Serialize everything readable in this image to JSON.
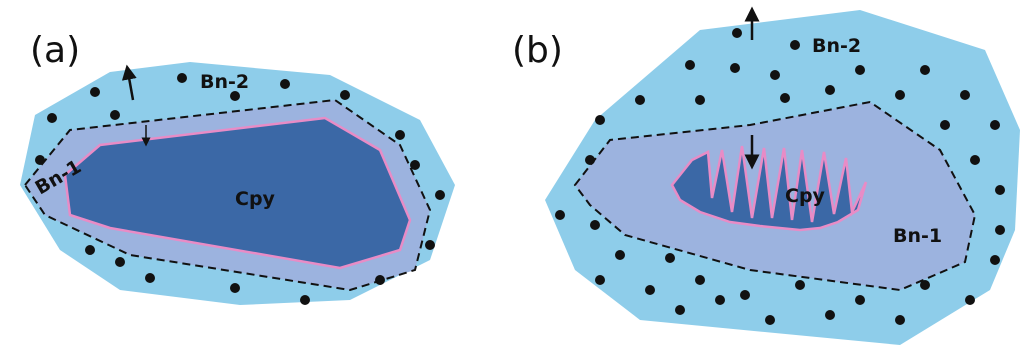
{
  "panels": [
    {
      "label": "(a)",
      "outer": "Bn-2",
      "middle": "Bn-1",
      "inner": "Cpy"
    },
    {
      "label": "(b)",
      "outer": "Bn-2",
      "middle": "Bn-1",
      "inner": "Cpy"
    }
  ]
}
